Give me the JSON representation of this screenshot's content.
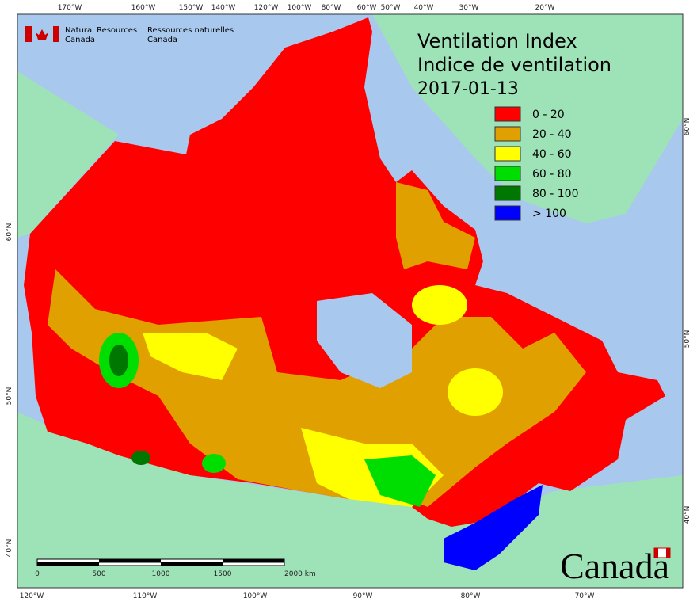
{
  "header": {
    "agency_en": [
      "Natural Resources",
      "Canada"
    ],
    "agency_fr": [
      "Ressources naturelles",
      "Canada"
    ]
  },
  "title": [
    "Ventilation Index",
    "Indice de ventilation",
    "2017-01-13"
  ],
  "legend": [
    {
      "label": "0 - 20",
      "color": "#ff0000"
    },
    {
      "label": "20 - 40",
      "color": "#e0a000"
    },
    {
      "label": "40 - 60",
      "color": "#ffff00"
    },
    {
      "label": "60 - 80",
      "color": "#00dd00"
    },
    {
      "label": "80 - 100",
      "color": "#007700"
    },
    {
      "label": "> 100",
      "color": "#0000ff"
    }
  ],
  "top_labels": [
    "170°W",
    "160°W",
    "150°W",
    "140°W",
    "120°W",
    "100°W",
    "80°W",
    "60°W",
    "50°W",
    "40°W",
    "30°W",
    "20°W"
  ],
  "bottom_labels": [
    "120°W",
    "110°W",
    "100°W",
    "90°W",
    "80°W",
    "70°W"
  ],
  "left_labels": [
    "60°N",
    "50°N",
    "40°N"
  ],
  "right_labels": [
    "60°N",
    "50°N",
    "40°N"
  ],
  "scale_bar": [
    "0",
    "500",
    "1000",
    "1500",
    "2000 km"
  ],
  "wordmark": "Canada"
}
